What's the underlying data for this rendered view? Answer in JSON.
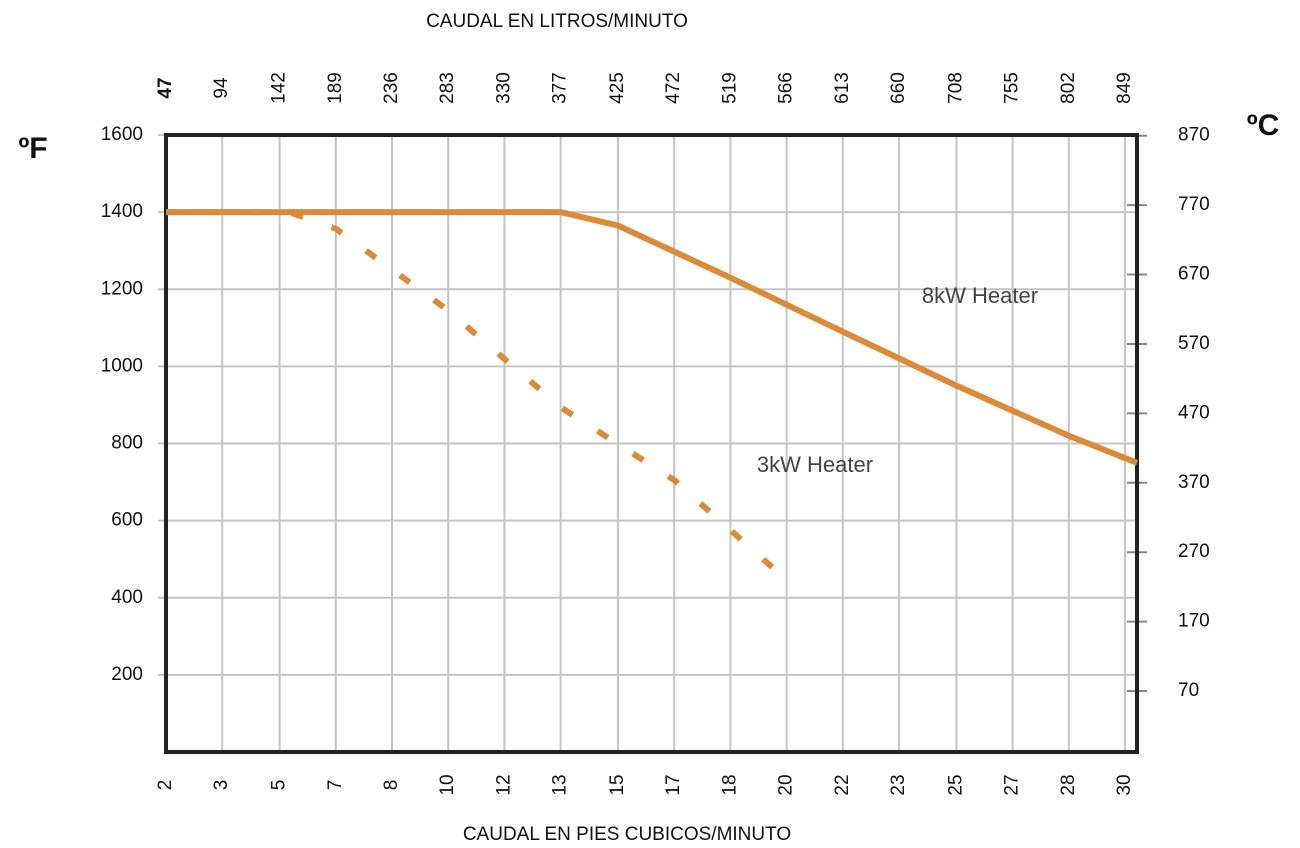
{
  "chart_data": {
    "type": "line",
    "x2_label": "CAUDAL EN LITROS/MINUTO",
    "x_label": "CAUDAL EN  PIES CUBICOS/MINUTO",
    "y_label": "ºF",
    "y2_label": "ºC",
    "xlim": [
      47,
      859
    ],
    "xticks": [
      {
        "value": 47,
        "label": "2"
      },
      {
        "value": 94,
        "label": "3"
      },
      {
        "value": 142,
        "label": "5"
      },
      {
        "value": 189,
        "label": "7"
      },
      {
        "value": 236,
        "label": "8"
      },
      {
        "value": 283,
        "label": "10"
      },
      {
        "value": 330,
        "label": "12"
      },
      {
        "value": 377,
        "label": "13"
      },
      {
        "value": 425,
        "label": "15"
      },
      {
        "value": 472,
        "label": "17"
      },
      {
        "value": 519,
        "label": "18"
      },
      {
        "value": 566,
        "label": "20"
      },
      {
        "value": 613,
        "label": "22"
      },
      {
        "value": 660,
        "label": "23"
      },
      {
        "value": 708,
        "label": "25"
      },
      {
        "value": 755,
        "label": "27"
      },
      {
        "value": 802,
        "label": "28"
      },
      {
        "value": 849,
        "label": "30"
      }
    ],
    "x2ticks": [
      47,
      94,
      142,
      189,
      236,
      283,
      330,
      377,
      425,
      472,
      519,
      566,
      613,
      660,
      708,
      755,
      802,
      849
    ],
    "ylim": [
      0,
      1600
    ],
    "yticks": [
      200,
      400,
      600,
      800,
      1000,
      1200,
      1400,
      1600
    ],
    "y2lim": [
      -17.8,
      871
    ],
    "y2ticks": [
      70,
      170,
      270,
      370,
      470,
      570,
      670,
      770,
      870
    ],
    "grid": true,
    "series": [
      {
        "name": "8kW Heater",
        "color": "#dc8a38",
        "style": "solid",
        "x": [
          47,
          377,
          425,
          519,
          566,
          613,
          708,
          802,
          859
        ],
        "values": [
          1400,
          1400,
          1365,
          1230,
          1160,
          1090,
          950,
          820,
          750
        ]
      },
      {
        "name": "3kW Heater",
        "color": "#dc8a38",
        "style": "dashed",
        "x": [
          47,
          150,
          189,
          283,
          377,
          472,
          566
        ],
        "values": [
          1400,
          1400,
          1357,
          1145,
          894,
          705,
          446
        ]
      }
    ]
  }
}
